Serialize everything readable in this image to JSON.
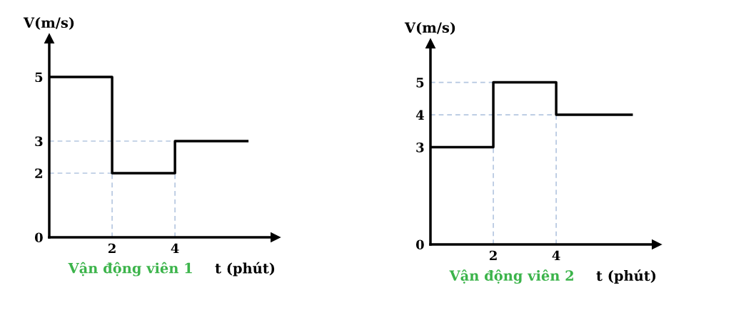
{
  "chart_data": [
    {
      "type": "step",
      "title": "Vận động viên 1",
      "xlabel": "t (phút)",
      "ylabel": "V(m/s)",
      "x": [
        0,
        2,
        4,
        6.3
      ],
      "values": [
        5,
        2,
        3,
        3
      ],
      "color": "#000000",
      "xlim": [
        0,
        7.2
      ],
      "ylim": [
        0,
        6.2
      ],
      "xticks": [
        2,
        4
      ],
      "yticks": [
        0,
        2,
        3,
        5
      ],
      "grid": false,
      "ref_lines": [
        {
          "axis": "y",
          "value": 3,
          "color": "#b4c6e0",
          "line_style": "dashed"
        },
        {
          "axis": "y",
          "value": 2,
          "color": "#b4c6e0",
          "line_style": "dashed"
        },
        {
          "axis": "x",
          "value": 2,
          "color": "#b4c6e0",
          "line_style": "dashed"
        },
        {
          "axis": "x",
          "value": 4,
          "color": "#b4c6e0",
          "line_style": "dashed"
        }
      ]
    },
    {
      "type": "step",
      "title": "Vận động viên 2",
      "xlabel": "t (phút)",
      "ylabel": "V(m/s)",
      "x": [
        0,
        2,
        4,
        6.4
      ],
      "values": [
        3,
        5,
        4,
        4
      ],
      "color": "#000000",
      "xlim": [
        0,
        7.2
      ],
      "ylim": [
        0,
        6.2
      ],
      "xticks": [
        2,
        4
      ],
      "yticks": [
        0,
        3,
        4,
        5
      ],
      "grid": false,
      "ref_lines": [
        {
          "axis": "y",
          "value": 5,
          "color": "#b4c6e0",
          "line_style": "dashed"
        },
        {
          "axis": "y",
          "value": 4,
          "color": "#b4c6e0",
          "line_style": "dashed"
        },
        {
          "axis": "x",
          "value": 2,
          "color": "#b4c6e0",
          "line_style": "dashed"
        },
        {
          "axis": "x",
          "value": 4,
          "color": "#b4c6e0",
          "line_style": "dashed"
        }
      ]
    }
  ]
}
